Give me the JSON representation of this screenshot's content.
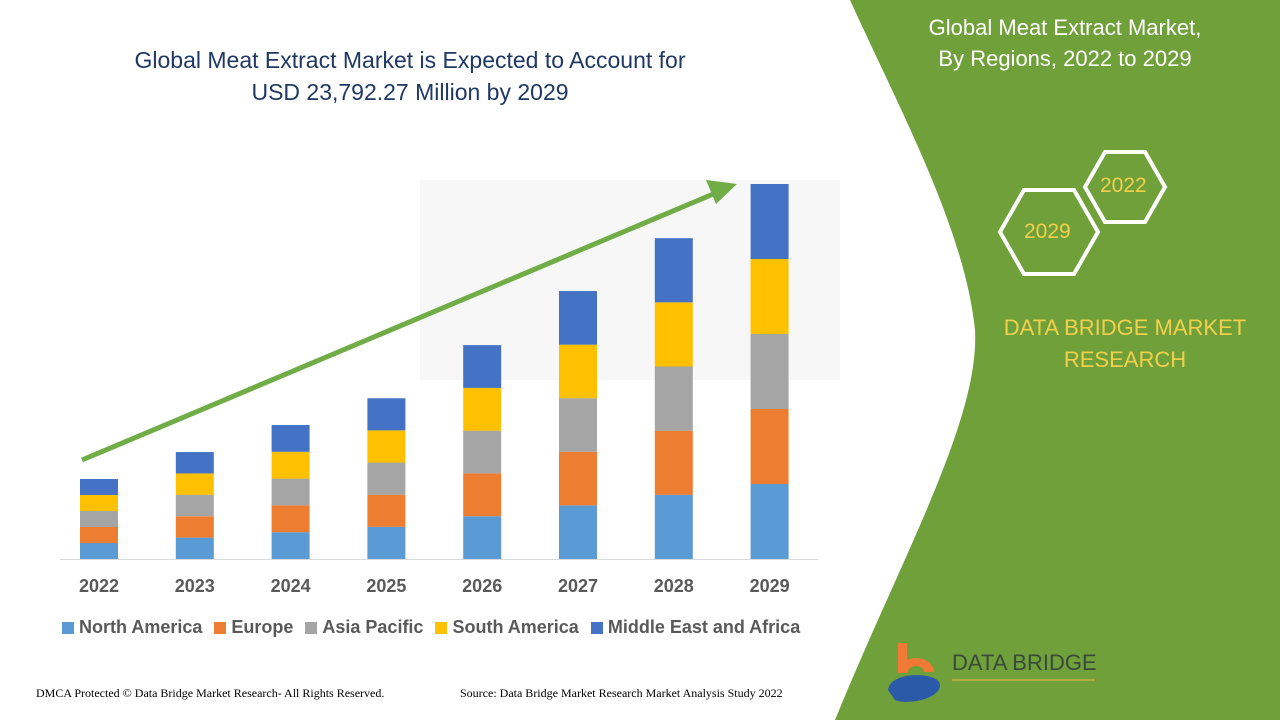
{
  "header": {
    "title_line1": "Global Meat Extract Market is Expected to Account for",
    "title_line2": "USD 23,792.27 Million by 2029"
  },
  "side_panel": {
    "title_line1": "Global Meat Extract Market,",
    "title_line2": "By Regions, 2022 to 2029",
    "hex_year_1": "2022",
    "hex_year_2": "2029",
    "brand_line1": "DATA BRIDGE MARKET",
    "brand_line2": "RESEARCH",
    "logo_text": "DATA BRIDGE",
    "color": "#70a03a"
  },
  "footer": {
    "left": "DMCA Protected © Data Bridge Market Research- All Rights Reserved.",
    "right": "Source: Data Bridge Market Research Market Analysis Study 2022"
  },
  "chart_data": {
    "type": "bar",
    "stacked": true,
    "title": "Global Meat Extract Market is Expected to Account for USD 23,792.27 Million by 2029",
    "xlabel": "",
    "ylabel": "",
    "grid": false,
    "legend_position": "bottom",
    "trend_arrow": true,
    "categories": [
      "2022",
      "2023",
      "2024",
      "2025",
      "2026",
      "2027",
      "2028",
      "2029"
    ],
    "series": [
      {
        "name": "North America",
        "color": "#5b9bd5",
        "values": [
          1015,
          1357,
          1700,
          2040,
          2714,
          3400,
          4071,
          4758
        ]
      },
      {
        "name": "Europe",
        "color": "#ed7d31",
        "values": [
          1015,
          1357,
          1700,
          2040,
          2714,
          3400,
          4071,
          4759
        ]
      },
      {
        "name": "Asia Pacific",
        "color": "#a5a5a5",
        "values": [
          1015,
          1357,
          1700,
          2040,
          2714,
          3400,
          4071,
          4758
        ]
      },
      {
        "name": "South America",
        "color": "#ffc000",
        "values": [
          1015,
          1357,
          1700,
          2040,
          2714,
          3400,
          4071,
          4759
        ]
      },
      {
        "name": "Middle East and Africa",
        "color": "#4472c4",
        "values": [
          1015,
          1357,
          1700,
          2040,
          2714,
          3400,
          4071,
          4758
        ]
      }
    ],
    "ylim": [
      0,
      23792.27
    ]
  }
}
